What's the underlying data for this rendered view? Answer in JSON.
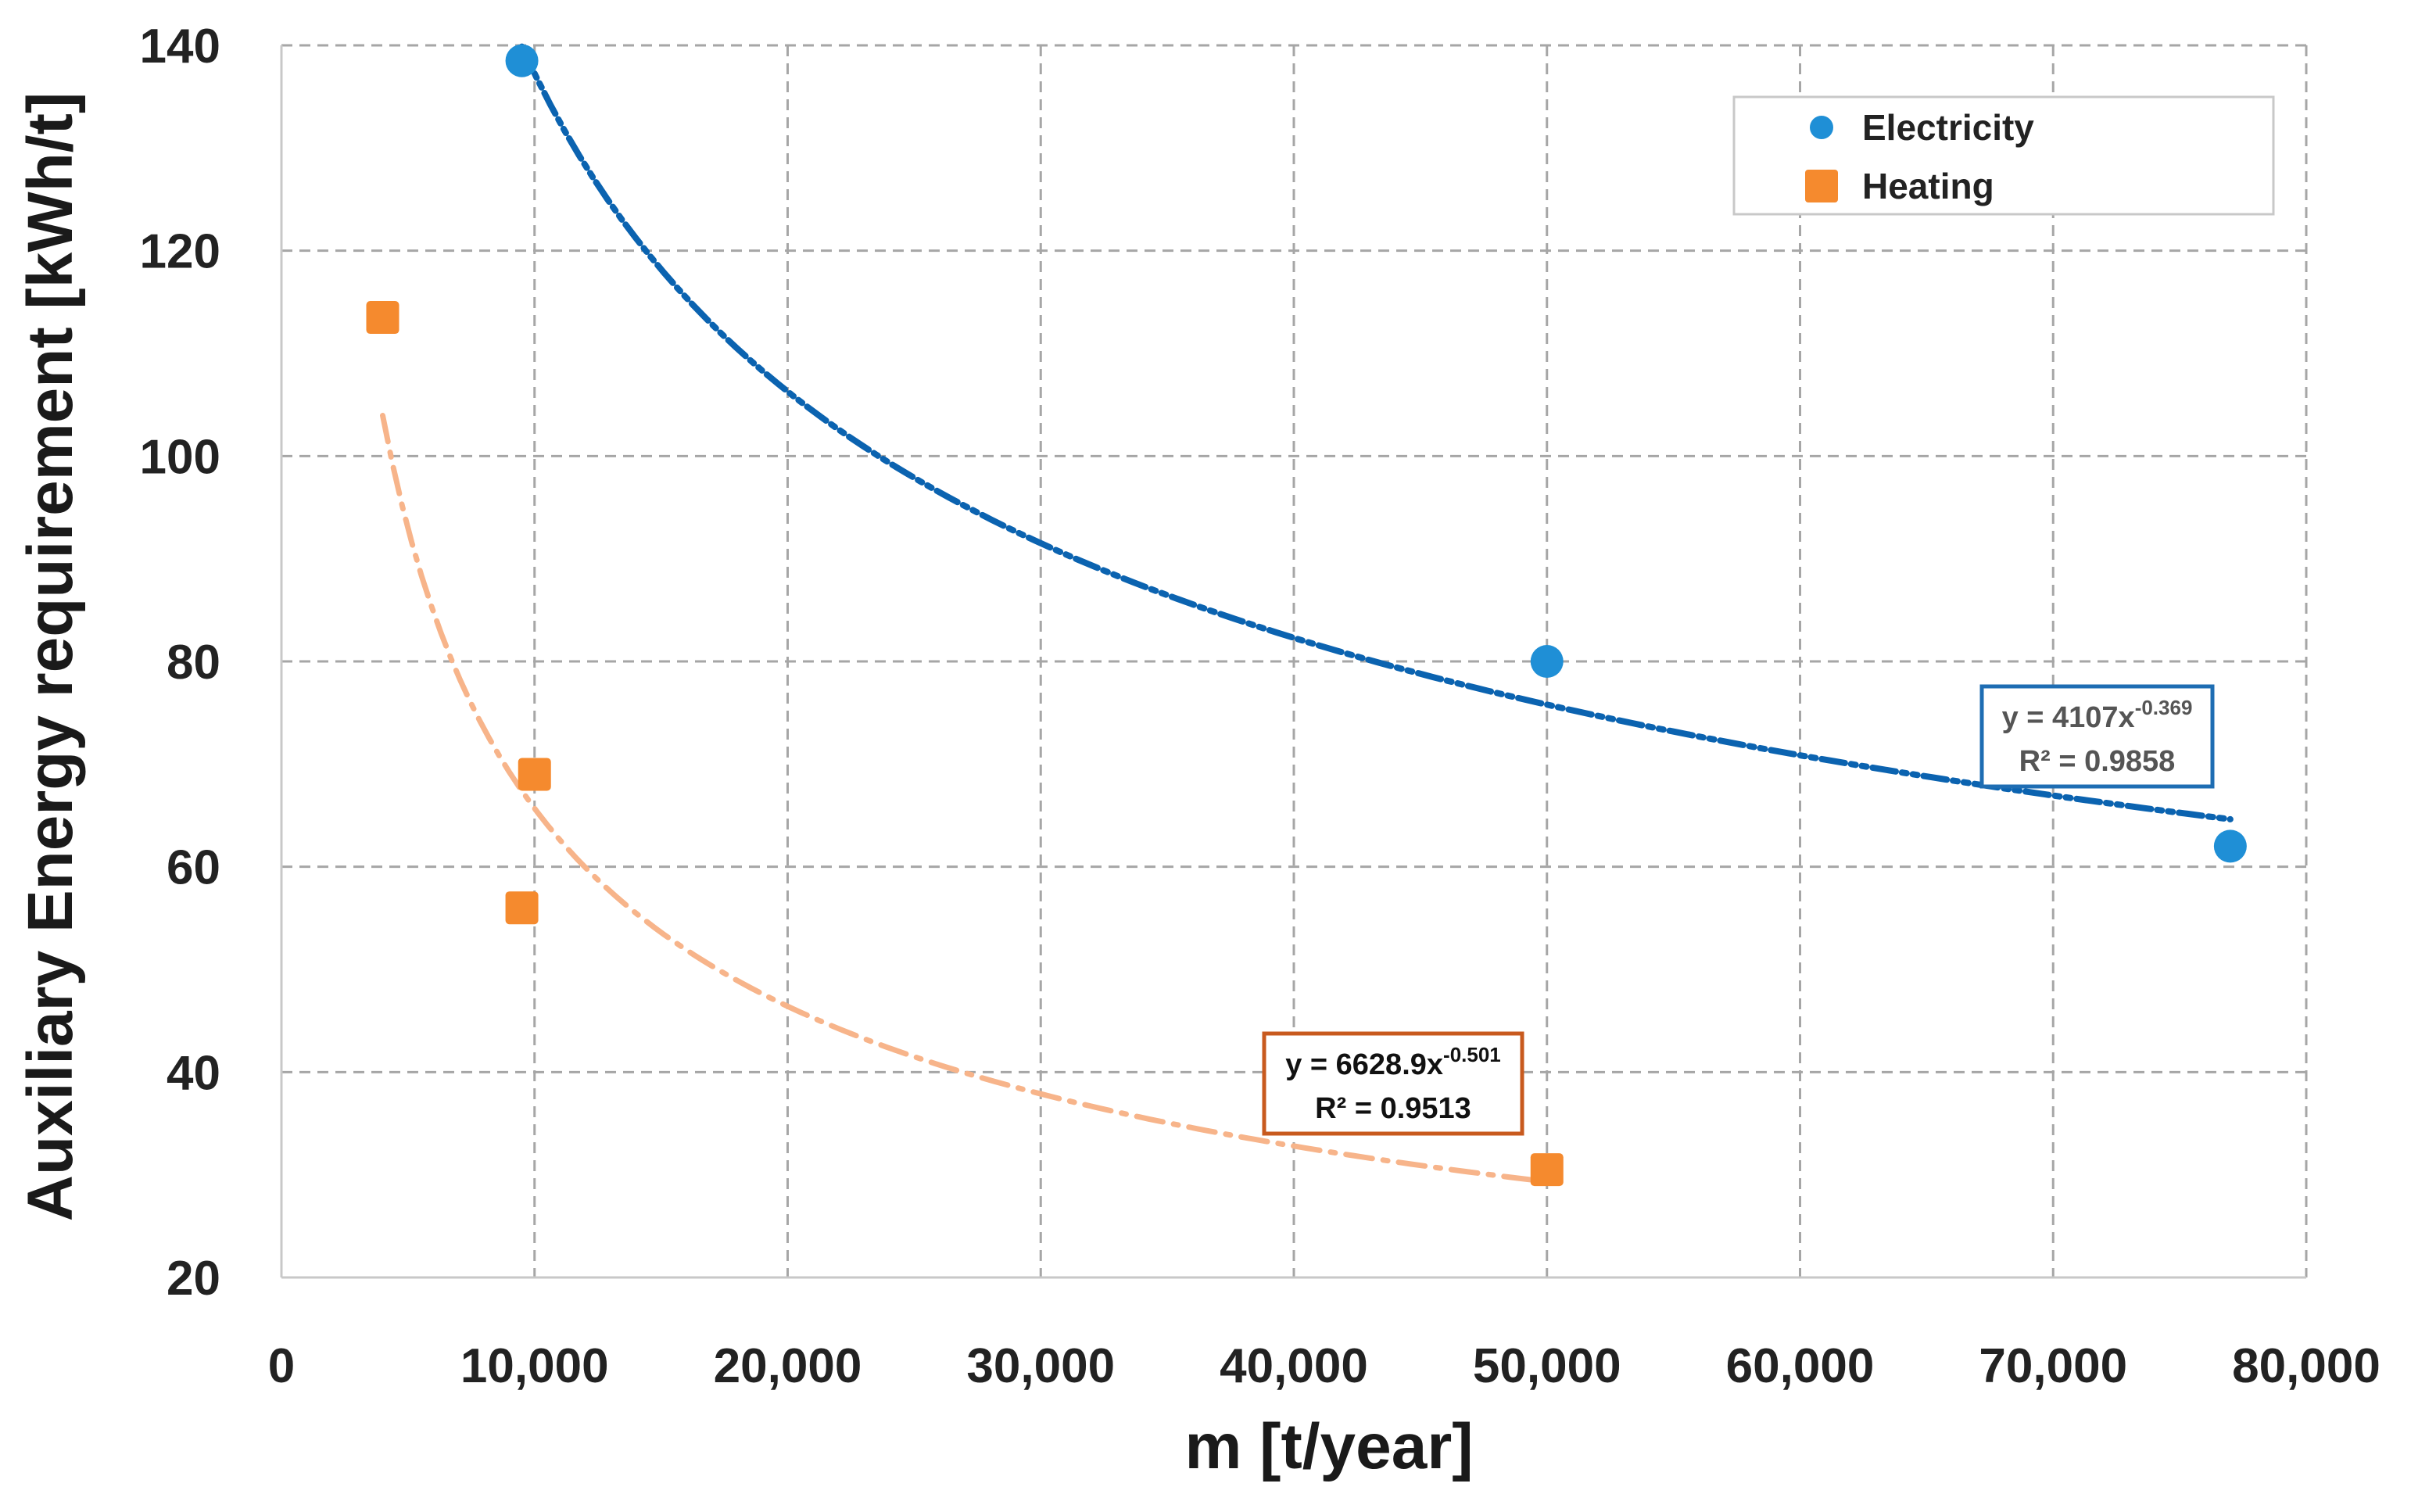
{
  "chart_data": {
    "type": "scatter",
    "title": "",
    "xlabel": "m [t/year]",
    "ylabel": "Auxiliary Energy requirement [kWh/t]",
    "xlim": [
      0,
      80000
    ],
    "ylim": [
      20,
      140
    ],
    "x_ticks": [
      0,
      10000,
      20000,
      30000,
      40000,
      50000,
      60000,
      70000,
      80000
    ],
    "x_tick_labels": [
      "0",
      "10,000",
      "20,000",
      "30,000",
      "40,000",
      "50,000",
      "60,000",
      "70,000",
      "80,000"
    ],
    "y_ticks": [
      20,
      40,
      60,
      80,
      100,
      120,
      140
    ],
    "y_tick_labels": [
      "20",
      "40",
      "60",
      "80",
      "100",
      "120",
      "140"
    ],
    "grid": true,
    "legend_position": "top-right",
    "series": [
      {
        "name": "Electricity",
        "marker": "circle",
        "color": "#1f8fd6",
        "trend_color": "#0b63b0",
        "x": [
          9500,
          50000,
          77000
        ],
        "y": [
          138.5,
          80,
          62
        ],
        "trendline": {
          "coefficient": 4107,
          "exponent": -0.369,
          "x_range": [
            9500,
            77000
          ],
          "equation_prefix": "y = 4107x",
          "equation_exponent": "-0.369",
          "r_squared_label": "R² = 0.9858",
          "label_color": "#555555",
          "box_color": "#1e6db3"
        }
      },
      {
        "name": "Heating",
        "marker": "square",
        "color": "#f58a2e",
        "trend_color": "#f7b48a",
        "x": [
          4000,
          10000,
          9500,
          50000
        ],
        "y": [
          113.5,
          69,
          56,
          30.5
        ],
        "trendline": {
          "coefficient": 6628.9,
          "exponent": -0.501,
          "x_range": [
            4000,
            50000
          ],
          "equation_prefix": "y = 6628.9x",
          "equation_exponent": "-0.501",
          "r_squared_label": "R² = 0.9513",
          "label_color": "#111111",
          "box_color": "#c85a1e"
        }
      }
    ]
  }
}
